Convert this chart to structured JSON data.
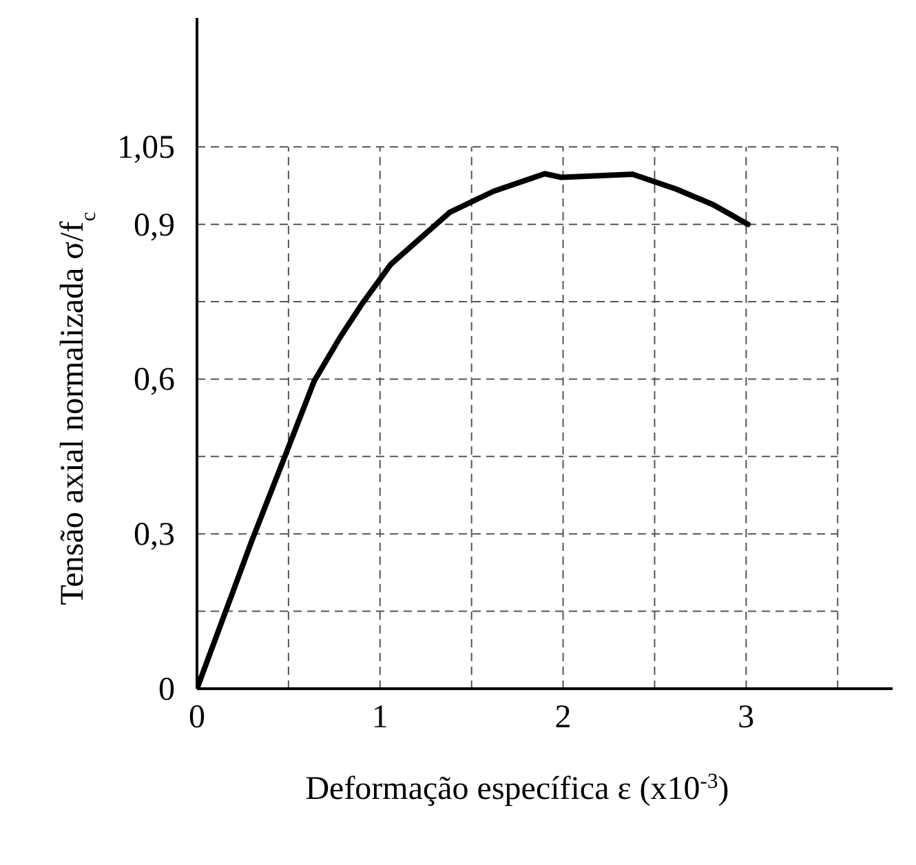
{
  "chart_data": {
    "type": "line",
    "xlabel": "Deformação específica  ε (x10$^{-3}$)",
    "ylabel": "Tensão axial normalizada  σ/f$_{c}$",
    "xlim": [
      0,
      3.8
    ],
    "ylim": [
      0,
      1.3
    ],
    "xticks": [
      0,
      {
        "value": 0.5,
        "label": null
      },
      1,
      {
        "value": 1.5,
        "label": null
      },
      2,
      {
        "value": 2.5,
        "label": null
      },
      3,
      {
        "value": 3.5,
        "label": null
      }
    ],
    "yticks": [
      0,
      {
        "value": 0.15,
        "label": null
      },
      {
        "value": 0.3,
        "label": "0,3"
      },
      {
        "value": 0.45,
        "label": null
      },
      {
        "value": 0.6,
        "label": "0,6"
      },
      {
        "value": 0.75,
        "label": null
      },
      {
        "value": 0.9,
        "label": "0,9"
      },
      {
        "value": 1.05,
        "label": "1,05"
      }
    ],
    "grid": true,
    "marker": "none",
    "line_style": "solid",
    "series": [
      {
        "color": "#000000",
        "x": [
          0,
          0.3,
          0.48,
          0.64,
          0.78,
          0.9,
          1.06,
          1.38,
          1.62,
          1.9,
          1.99,
          2.38,
          2.62,
          2.82,
          3.01
        ],
        "values": [
          0,
          0.287,
          0.45,
          0.596,
          0.68,
          0.745,
          0.823,
          0.923,
          0.964,
          0.998,
          0.991,
          0.997,
          0.968,
          0.938,
          0.9
        ]
      }
    ]
  }
}
